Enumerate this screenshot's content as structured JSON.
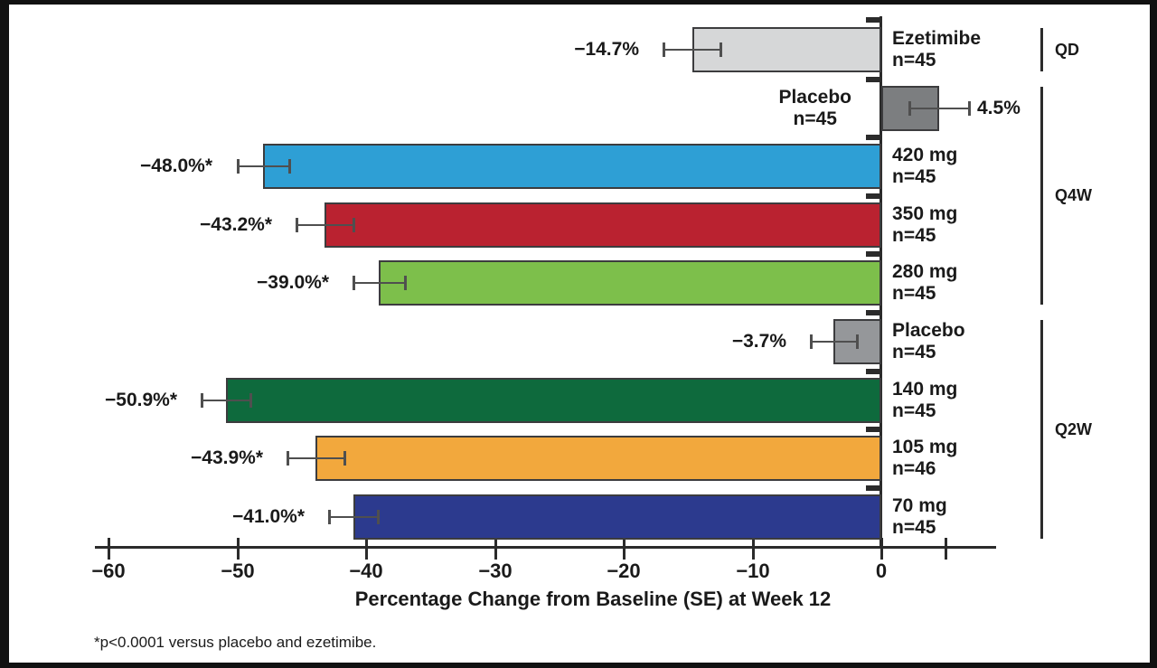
{
  "chart_data": {
    "type": "bar",
    "orientation": "horizontal",
    "title": "",
    "xlabel": "Percentage Change from Baseline (SE) at Week 12",
    "footnote": "*p<0.0001 versus placebo and ezetimibe.",
    "xlim": [
      -60,
      9
    ],
    "grid": false,
    "x_ticks": [
      {
        "value": -60,
        "label": "−60"
      },
      {
        "value": -50,
        "label": "−50"
      },
      {
        "value": -40,
        "label": "−40"
      },
      {
        "value": -30,
        "label": "−30"
      },
      {
        "value": -20,
        "label": "−20"
      },
      {
        "value": -10,
        "label": "−10"
      },
      {
        "value": 0,
        "label": "0"
      },
      {
        "value": 5,
        "label": ""
      }
    ],
    "groups": [
      {
        "label": "QD",
        "first_row": 0,
        "last_row": 0
      },
      {
        "label": "Q4W",
        "first_row": 1,
        "last_row": 4
      },
      {
        "label": "Q2W",
        "first_row": 5,
        "last_row": 8
      }
    ],
    "bars": [
      {
        "label": "Ezetimibe",
        "n": "n=45",
        "value": -14.7,
        "se": 2.2,
        "value_label": "−14.7%",
        "color": "#d6d7d8",
        "name_side": "right"
      },
      {
        "label": "Placebo",
        "n": "n=45",
        "value": 4.5,
        "se": 2.3,
        "value_label": "4.5%",
        "color": "#7c7e80",
        "name_side": "left"
      },
      {
        "label": "420 mg",
        "n": "n=45",
        "value": -48.0,
        "se": 2.0,
        "value_label": "−48.0%*",
        "color": "#2e9fd5",
        "name_side": "right"
      },
      {
        "label": "350 mg",
        "n": "n=45",
        "value": -43.2,
        "se": 2.2,
        "value_label": "−43.2%*",
        "color": "#ba2230",
        "name_side": "right"
      },
      {
        "label": "280 mg",
        "n": "n=45",
        "value": -39.0,
        "se": 2.0,
        "value_label": "−39.0%*",
        "color": "#7dbf4b",
        "name_side": "right"
      },
      {
        "label": "Placebo",
        "n": "n=45",
        "value": -3.7,
        "se": 1.8,
        "value_label": "−3.7%",
        "color": "#95979a",
        "name_side": "right"
      },
      {
        "label": "140 mg",
        "n": "n=45",
        "value": -50.9,
        "se": 1.9,
        "value_label": "−50.9%*",
        "color": "#0e6a3d",
        "name_side": "right"
      },
      {
        "label": "105 mg",
        "n": "n=46",
        "value": -43.9,
        "se": 2.2,
        "value_label": "−43.9%*",
        "color": "#f2a83d",
        "name_side": "right"
      },
      {
        "label": "70 mg",
        "n": "n=45",
        "value": -41.0,
        "se": 1.9,
        "value_label": "−41.0%*",
        "color": "#2c3a8e",
        "name_side": "right"
      }
    ],
    "colors": {
      "bar_border": "#3c3c3e",
      "error_bar": "#4f4f4f",
      "axis": "#2b2b2b",
      "text": "#1a1a1a"
    }
  }
}
